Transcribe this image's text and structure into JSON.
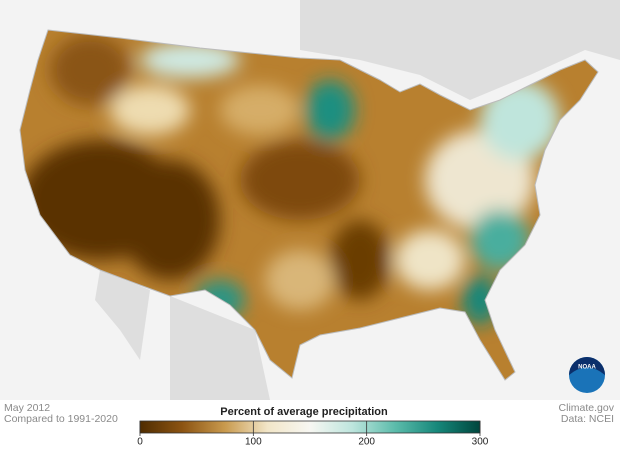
{
  "header": {
    "date": "May 2012",
    "baseline": "Compared to 1991-2020"
  },
  "legend": {
    "title": "Percent of average precipitation",
    "range": [
      0,
      300
    ],
    "ticks": [
      0,
      100,
      200,
      300
    ],
    "colors": [
      "#4f2c00",
      "#8c5412",
      "#c99a4e",
      "#f2e6c8",
      "#f7f7f2",
      "#bde5dd",
      "#5cbcab",
      "#16877a",
      "#00463d"
    ]
  },
  "credits": {
    "source": "Climate.gov",
    "data": "Data: NCEI",
    "logo": "NOAA"
  }
}
